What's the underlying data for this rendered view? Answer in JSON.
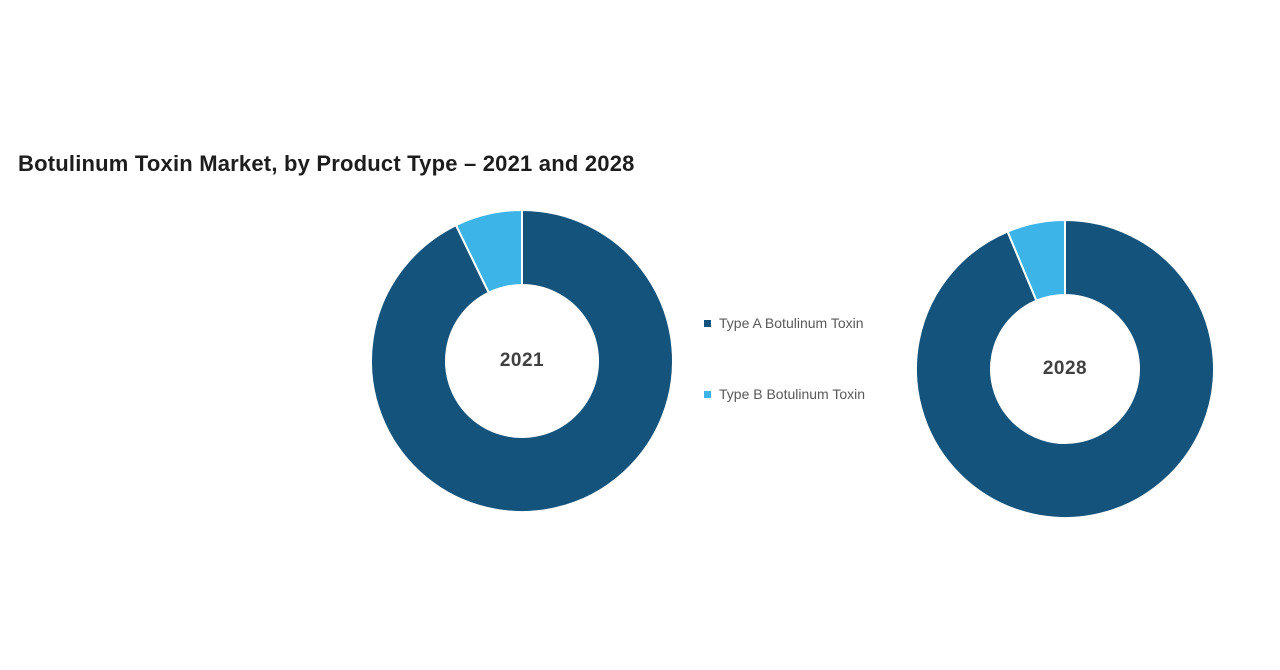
{
  "title": "Botulinum Toxin Market, by Product Type – 2021 and 2028",
  "chart_data": [
    {
      "type": "pie",
      "subtype": "donut",
      "title": "2021",
      "center_label": "2021",
      "direction": "clockwise",
      "start_angle_deg": 0,
      "legend_position": "center-between-charts",
      "segments": [
        {
          "key": "type-a",
          "label": "Type A Botulinum Toxin",
          "value_pct": 92.8,
          "color": "#14537B"
        },
        {
          "key": "type-b",
          "label": "Type B Botulinum Toxin",
          "value_pct": 7.2,
          "color": "#3CB4E7"
        }
      ]
    },
    {
      "type": "pie",
      "subtype": "donut",
      "title": "2028",
      "center_label": "2028",
      "direction": "clockwise",
      "start_angle_deg": 0,
      "legend_position": "center-between-charts",
      "segments": [
        {
          "key": "type-a",
          "label": "Type A Botulinum Toxin",
          "value_pct": 93.7,
          "color": "#14537B"
        },
        {
          "key": "type-b",
          "label": "Type B Botulinum Toxin",
          "value_pct": 6.3,
          "color": "#3CB4E7"
        }
      ]
    }
  ],
  "legend": {
    "items": [
      {
        "label": "Type A Botulinum Toxin",
        "color": "#14537B"
      },
      {
        "label": "Type B Botulinum Toxin",
        "color": "#3CB4E7"
      }
    ]
  },
  "colors": {
    "accent_dark_blue": "#14537B",
    "accent_light_blue": "#3CB4E7",
    "title_text": "#1D1D1D",
    "legend_text": "#595959",
    "center_label_text": "#404040",
    "background": "#FFFFFF"
  }
}
